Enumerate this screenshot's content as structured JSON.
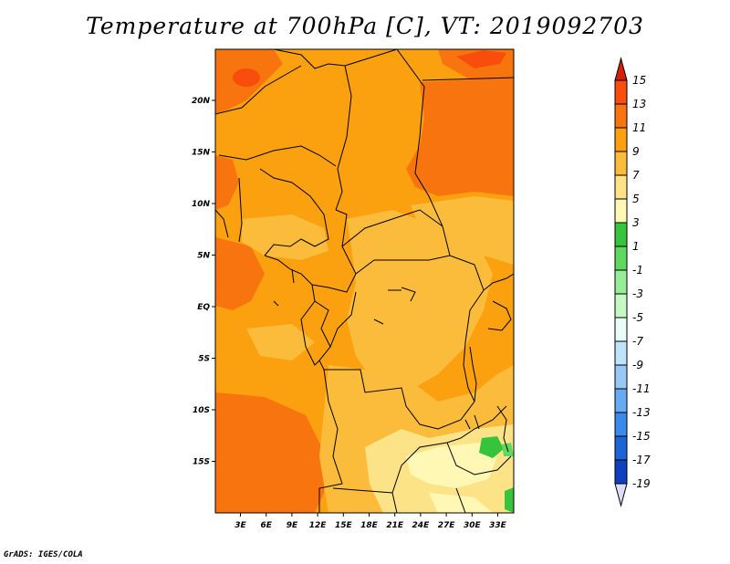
{
  "title": "Temperature at 700hPa [C], VT: 2019092703",
  "credit": "GrADS: IGES/COLA",
  "map": {
    "lon_labels": [
      "3E",
      "6E",
      "9E",
      "12E",
      "15E",
      "18E",
      "21E",
      "24E",
      "27E",
      "30E",
      "33E"
    ],
    "lat_labels": [
      "20N",
      "15N",
      "10N",
      "5N",
      "EQ",
      "5S",
      "10S",
      "15S"
    ]
  },
  "colorbar": {
    "labels": [
      "15",
      "13",
      "11",
      "9",
      "7",
      "5",
      "3",
      "1",
      "-1",
      "-3",
      "-5",
      "-7",
      "-9",
      "-11",
      "-13",
      "-15",
      "-17",
      "-19"
    ],
    "colors": [
      "#d71e08",
      "#f84d0c",
      "#f8740f",
      "#fba00f",
      "#fbbc3c",
      "#fde387",
      "#fef8b4",
      "#36c43c",
      "#5ed85e",
      "#98ec98",
      "#c4f8c4",
      "#e9fdf8",
      "#bfe3fb",
      "#98c9f6",
      "#66aaf1",
      "#3a8aed",
      "#1c64d7",
      "#0f3ec0",
      "#1424a0",
      "#0c0a64",
      "#dcdcf6"
    ]
  }
}
